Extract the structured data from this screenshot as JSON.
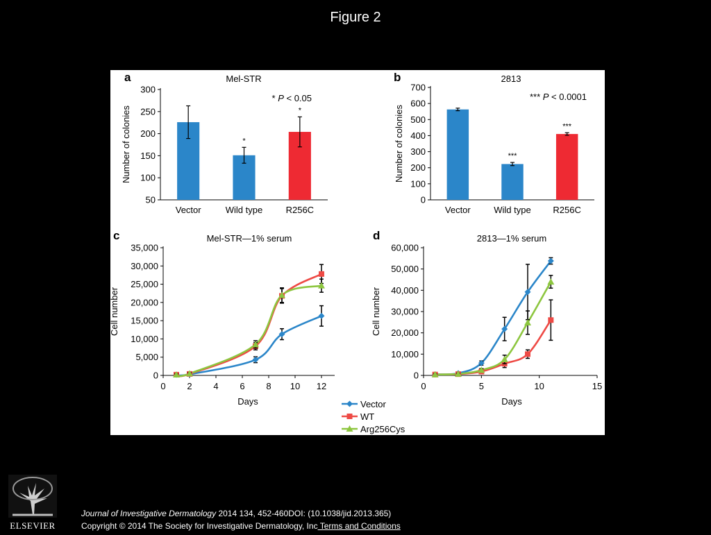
{
  "slide": {
    "title": "Figure 2"
  },
  "citation": {
    "journal": "Journal of Investigative Dermatology",
    "details": " 2014 134, 452-460DOI: (10.1038/jid.2013.365)",
    "copyright": "Copyright © 2014 The Society for Investigative Dermatology, Inc",
    "terms_link": " Terms and Conditions"
  },
  "logo": {
    "text": "ELSEVIER"
  },
  "chart_data": [
    {
      "panel": "a",
      "type": "bar",
      "title": "Mel-STR",
      "ylabel": "Number of colonies",
      "xlabel": "",
      "ylim": [
        50,
        300
      ],
      "yticks": [
        50,
        100,
        150,
        200,
        250,
        300
      ],
      "categories": [
        "Vector",
        "Wild type",
        "R256C"
      ],
      "values": [
        226,
        151,
        204
      ],
      "errors": [
        37,
        18,
        34
      ],
      "bar_colors": [
        "#2b86c9",
        "#2b86c9",
        "#ee2a33"
      ],
      "significance": [
        "",
        "*",
        "*"
      ],
      "annotation_prefix": "* ",
      "annotation_p": "P",
      "annotation_rest": " < 0.05"
    },
    {
      "panel": "b",
      "type": "bar",
      "title": "2813",
      "ylabel": "Number of colonies",
      "xlabel": "",
      "ylim": [
        0,
        700
      ],
      "yticks": [
        0,
        100,
        200,
        300,
        400,
        500,
        600,
        700
      ],
      "categories": [
        "Vector",
        "Wild type",
        "R256C"
      ],
      "values": [
        563,
        223,
        410
      ],
      "errors": [
        8,
        10,
        8
      ],
      "bar_colors": [
        "#2b86c9",
        "#2b86c9",
        "#ee2a33"
      ],
      "significance": [
        "",
        "***",
        "***"
      ],
      "annotation_prefix": "*** ",
      "annotation_p": "P",
      "annotation_rest": " < 0.0001"
    },
    {
      "panel": "c",
      "type": "line",
      "title": "Mel-STR—1% serum",
      "xlabel": "Days",
      "ylabel": "Cell number",
      "xlim": [
        0,
        13
      ],
      "xticks": [
        0,
        2,
        4,
        6,
        8,
        10,
        12
      ],
      "ylim": [
        0,
        35000
      ],
      "yticks": [
        0,
        5000,
        10000,
        15000,
        20000,
        25000,
        30000,
        35000
      ],
      "yticklabels": [
        "0",
        "5,000",
        "10,000",
        "15,000",
        "20,000",
        "25,000",
        "30,000",
        "35,000"
      ],
      "x": [
        1,
        2,
        7,
        9,
        12
      ],
      "series": [
        {
          "name": "Vector",
          "color": "#2b86c9",
          "marker": "diamond",
          "values": [
            200,
            300,
            4300,
            11300,
            16300
          ],
          "errors": [
            200,
            200,
            800,
            1500,
            2800
          ]
        },
        {
          "name": "WT",
          "color": "#ee4a45",
          "marker": "square",
          "values": [
            200,
            400,
            8000,
            21800,
            27800
          ],
          "errors": [
            200,
            200,
            1000,
            2000,
            2600
          ]
        },
        {
          "name": "Arg256Cys",
          "color": "#8dc63f",
          "marker": "triangle",
          "values": [
            200,
            500,
            8500,
            22000,
            24600
          ],
          "errors": [
            200,
            200,
            1000,
            2000,
            1800
          ]
        }
      ]
    },
    {
      "panel": "d",
      "type": "line",
      "title": "2813—1% serum",
      "xlabel": "Days",
      "ylabel": "Cell number",
      "xlim": [
        0,
        15
      ],
      "xticks": [
        0,
        5,
        10,
        15
      ],
      "ylim": [
        0,
        60000
      ],
      "yticks": [
        0,
        10000,
        20000,
        30000,
        40000,
        50000,
        60000
      ],
      "yticklabels": [
        "0",
        "10,000",
        "20,000",
        "30,000",
        "40,000",
        "50,000",
        "60,000"
      ],
      "x": [
        1,
        3,
        5,
        7,
        9,
        11
      ],
      "series": [
        {
          "name": "Vector",
          "color": "#2b86c9",
          "marker": "diamond",
          "values": [
            500,
            1000,
            5800,
            21800,
            39200,
            53800
          ],
          "errors": [
            300,
            300,
            1000,
            5500,
            13000,
            1500
          ]
        },
        {
          "name": "WT",
          "color": "#ee4a45",
          "marker": "square",
          "values": [
            400,
            600,
            1800,
            5500,
            10000,
            26000
          ],
          "errors": [
            300,
            300,
            700,
            1800,
            2000,
            9500
          ]
        },
        {
          "name": "Arg256Cys",
          "color": "#8dc63f",
          "marker": "triangle",
          "values": [
            400,
            700,
            2500,
            7500,
            24800,
            44000
          ],
          "errors": [
            300,
            300,
            700,
            2000,
            5500,
            3000
          ]
        }
      ]
    }
  ],
  "legend": {
    "entries": [
      {
        "label": "Vector",
        "color": "#2b86c9",
        "marker": "diamond"
      },
      {
        "label": "WT",
        "color": "#ee4a45",
        "marker": "square"
      },
      {
        "label": "Arg256Cys",
        "color": "#8dc63f",
        "marker": "triangle"
      }
    ]
  }
}
